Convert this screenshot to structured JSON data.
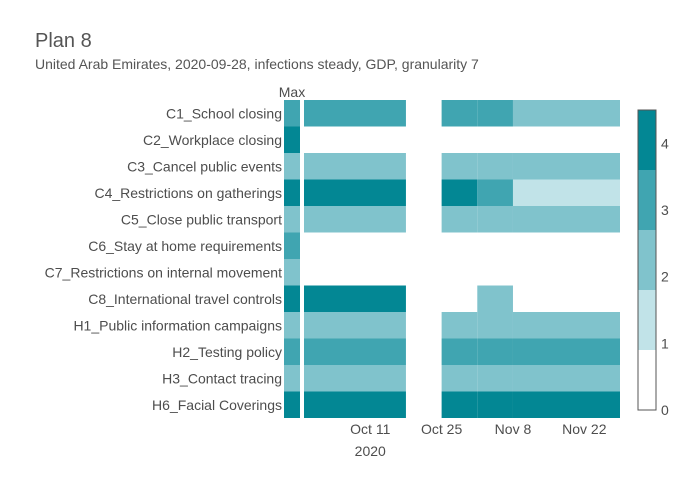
{
  "title": "Plan 8",
  "subtitle": "United Arab Emirates, 2020-09-28, infections steady, GDP, granularity 7",
  "chart_data": {
    "type": "heatmap",
    "max_column_label": "Max",
    "rows": [
      "C1_School closing",
      "C2_Workplace closing",
      "C3_Cancel public events",
      "C4_Restrictions on gatherings",
      "C5_Close public transport",
      "C6_Stay at home requirements",
      "C7_Restrictions on internal movement",
      "C8_International travel controls",
      "H1_Public information campaigns",
      "H2_Testing policy",
      "H3_Contact tracing",
      "H6_Facial Coverings"
    ],
    "max_values": [
      3,
      4,
      2,
      4,
      2,
      3,
      2,
      4,
      2,
      3,
      2,
      4
    ],
    "x_axis": {
      "start": "2020-09-28",
      "end": "2020-11-29",
      "ticks": [
        {
          "date": "2020-10-11",
          "label": "Oct 11",
          "sublabel": "2020"
        },
        {
          "date": "2020-10-25",
          "label": "Oct 25",
          "sublabel": ""
        },
        {
          "date": "2020-11-08",
          "label": "Nov 8",
          "sublabel": ""
        },
        {
          "date": "2020-11-22",
          "label": "Nov 22",
          "sublabel": ""
        }
      ]
    },
    "periods": [
      {
        "start": "2020-09-28",
        "end": "2020-10-18",
        "values": [
          3,
          null,
          2,
          4,
          2,
          null,
          null,
          4,
          2,
          3,
          2,
          4
        ]
      },
      {
        "start": "2020-10-25",
        "end": "2020-11-01",
        "values": [
          3,
          null,
          2,
          4,
          2,
          null,
          null,
          null,
          2,
          3,
          2,
          4
        ]
      },
      {
        "start": "2020-11-01",
        "end": "2020-11-08",
        "values": [
          3,
          null,
          2,
          3,
          2,
          null,
          null,
          2,
          2,
          3,
          2,
          4
        ]
      },
      {
        "start": "2020-11-08",
        "end": "2020-11-29",
        "values": [
          2,
          null,
          2,
          1,
          2,
          null,
          null,
          null,
          2,
          3,
          2,
          4
        ]
      }
    ],
    "colorbar": {
      "min": 0,
      "max": 4.5,
      "ticks": [
        0,
        1,
        2,
        3,
        4
      ],
      "colors": [
        "#ffffff",
        "#c1e3e8",
        "#80c3cc",
        "#40a5b1",
        "#038794"
      ]
    }
  }
}
